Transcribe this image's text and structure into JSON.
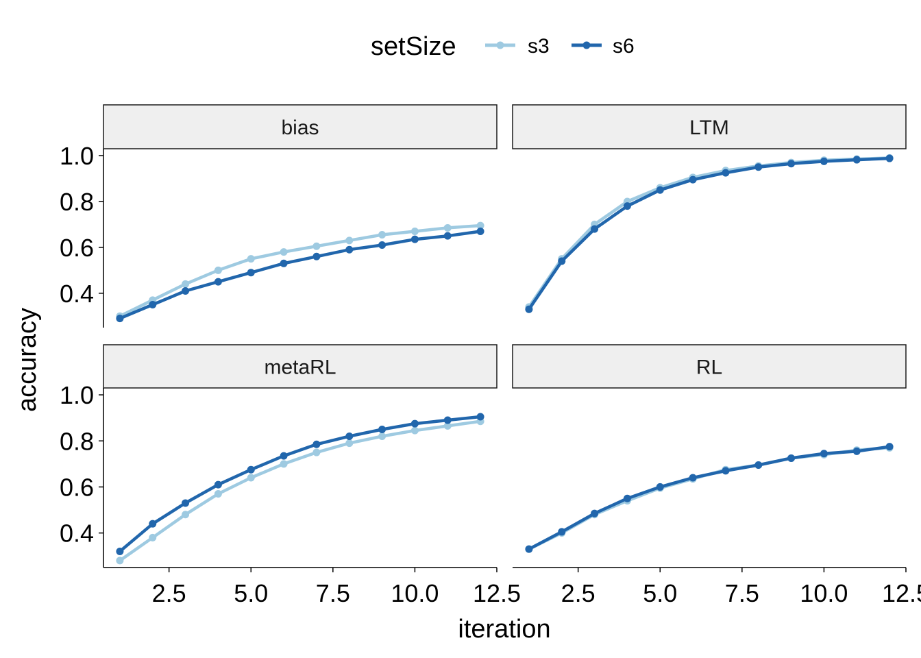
{
  "chart_data": {
    "type": "line",
    "facet_layout": "2x2",
    "xlabel": "iteration",
    "ylabel": "accuracy",
    "x_ticks": [
      "2.5",
      "5.0",
      "7.5",
      "10.0",
      "12.5"
    ],
    "y_ticks": [
      "0.4",
      "0.6",
      "0.8",
      "1.0"
    ],
    "xlim": [
      0.5,
      12.5
    ],
    "ylim": [
      0.25,
      1.03
    ],
    "grid": false,
    "legend": {
      "title": "setSize",
      "position": "top",
      "entries": [
        {
          "label": "s3",
          "color": "#9ECAE1"
        },
        {
          "label": "s6",
          "color": "#2166AC"
        }
      ]
    },
    "x": [
      1,
      2,
      3,
      4,
      5,
      6,
      7,
      8,
      9,
      10,
      11,
      12
    ],
    "panels": [
      {
        "label": "bias",
        "series": [
          {
            "key": "s3",
            "values": [
              0.3,
              0.37,
              0.44,
              0.5,
              0.55,
              0.58,
              0.605,
              0.63,
              0.655,
              0.67,
              0.685,
              0.695
            ]
          },
          {
            "key": "s6",
            "values": [
              0.29,
              0.35,
              0.41,
              0.45,
              0.49,
              0.53,
              0.56,
              0.59,
              0.61,
              0.635,
              0.65,
              0.67
            ]
          }
        ]
      },
      {
        "label": "LTM",
        "series": [
          {
            "key": "s3",
            "values": [
              0.34,
              0.55,
              0.7,
              0.8,
              0.86,
              0.905,
              0.935,
              0.955,
              0.97,
              0.98,
              0.985,
              0.99
            ]
          },
          {
            "key": "s6",
            "values": [
              0.33,
              0.54,
              0.68,
              0.78,
              0.85,
              0.895,
              0.925,
              0.95,
              0.965,
              0.975,
              0.982,
              0.988
            ]
          }
        ]
      },
      {
        "label": "metaRL",
        "series": [
          {
            "key": "s3",
            "values": [
              0.28,
              0.38,
              0.48,
              0.57,
              0.64,
              0.7,
              0.75,
              0.79,
              0.82,
              0.845,
              0.865,
              0.885
            ]
          },
          {
            "key": "s6",
            "values": [
              0.32,
              0.44,
              0.53,
              0.61,
              0.675,
              0.735,
              0.785,
              0.82,
              0.85,
              0.875,
              0.89,
              0.905
            ]
          }
        ]
      },
      {
        "label": "RL",
        "series": [
          {
            "key": "s3",
            "values": [
              0.33,
              0.4,
              0.48,
              0.54,
              0.595,
              0.635,
              0.675,
              0.695,
              0.725,
              0.74,
              0.76,
              0.77
            ]
          },
          {
            "key": "s6",
            "values": [
              0.33,
              0.405,
              0.485,
              0.55,
              0.6,
              0.64,
              0.67,
              0.695,
              0.725,
              0.745,
              0.755,
              0.775
            ]
          }
        ]
      }
    ]
  }
}
